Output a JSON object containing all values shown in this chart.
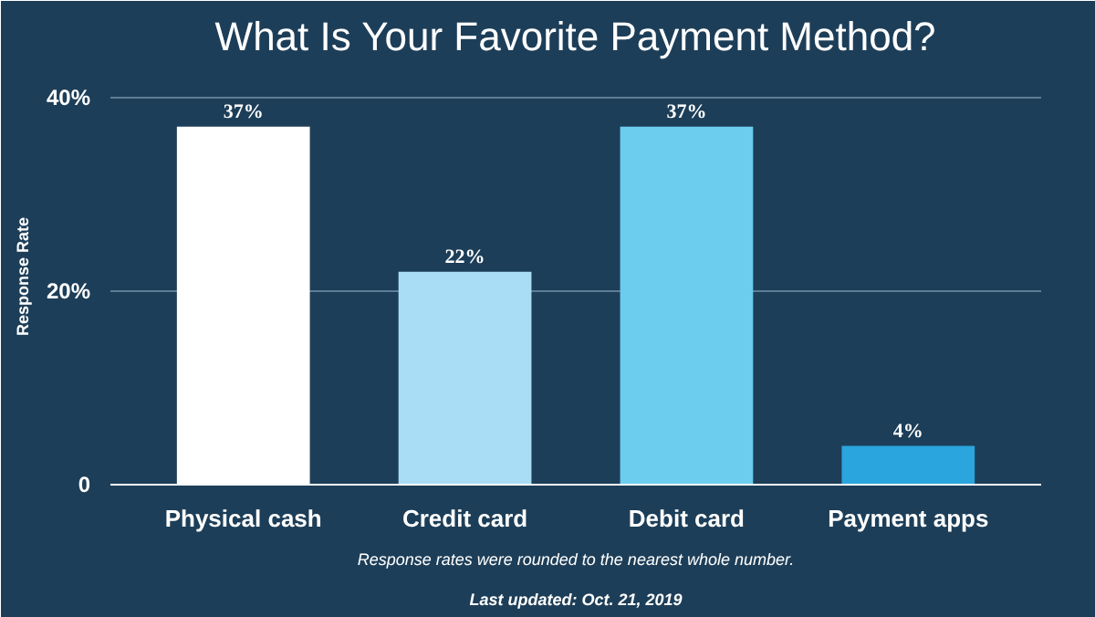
{
  "chart_data": {
    "type": "bar",
    "title": "What Is Your Favorite Payment Method?",
    "ylabel": "Response Rate",
    "categories": [
      "Physical cash",
      "Credit card",
      "Debit card",
      "Payment apps"
    ],
    "values": [
      37,
      22,
      37,
      4
    ],
    "colors": [
      "#ffffff",
      "#a9ddf6",
      "#6ccdee",
      "#2aa5dd"
    ],
    "value_labels": [
      "37%",
      "22%",
      "37%",
      "4%"
    ],
    "ylim": [
      0,
      43
    ],
    "yticks": [
      {
        "value": 0,
        "label": "0"
      },
      {
        "value": 20,
        "label": "20%"
      },
      {
        "value": 40,
        "label": "40%"
      }
    ],
    "grid": "y",
    "annotations": [
      "Response rates were rounded to the nearest whole number.",
      "Last updated: Oct. 21, 2019"
    ]
  }
}
